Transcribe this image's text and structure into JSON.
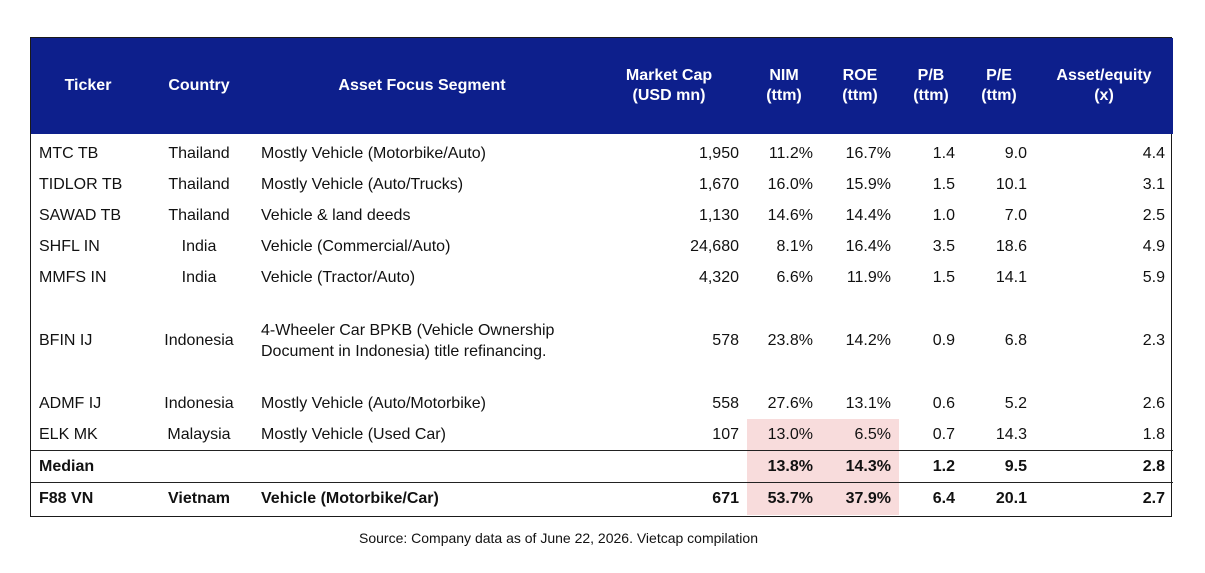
{
  "header": {
    "ticker": "Ticker",
    "country": "Country",
    "segment": "Asset Focus Segment",
    "mcap_l1": "Market Cap",
    "mcap_l2": "(USD mn)",
    "nim_l1": "NIM",
    "nim_l2": "(ttm)",
    "roe_l1": "ROE",
    "roe_l2": "(ttm)",
    "pb_l1": "P/B",
    "pb_l2": "(ttm)",
    "pe_l1": "P/E",
    "pe_l2": "(ttm)",
    "ae_l1": "Asset/equity",
    "ae_l2": "(x)"
  },
  "rows": [
    {
      "ticker": "MTC TB",
      "country": "Thailand",
      "segment": "Mostly Vehicle (Motorbike/Auto)",
      "mcap": "1,950",
      "nim": "11.2%",
      "roe": "16.7%",
      "pb": "1.4",
      "pe": "9.0",
      "ae": "4.4"
    },
    {
      "ticker": "TIDLOR TB",
      "country": "Thailand",
      "segment": "Mostly Vehicle (Auto/Trucks)",
      "mcap": "1,670",
      "nim": "16.0%",
      "roe": "15.9%",
      "pb": "1.5",
      "pe": "10.1",
      "ae": "3.1"
    },
    {
      "ticker": "SAWAD TB",
      "country": "Thailand",
      "segment": "Vehicle & land deeds",
      "mcap": "1,130",
      "nim": "14.6%",
      "roe": "14.4%",
      "pb": "1.0",
      "pe": "7.0",
      "ae": "2.5"
    },
    {
      "ticker": "SHFL IN",
      "country": "India",
      "segment": "Vehicle (Commercial/Auto)",
      "mcap": "24,680",
      "nim": "8.1%",
      "roe": "16.4%",
      "pb": "3.5",
      "pe": "18.6",
      "ae": "4.9"
    },
    {
      "ticker": "MMFS IN",
      "country": "India",
      "segment": "Vehicle (Tractor/Auto)",
      "mcap": "4,320",
      "nim": "6.6%",
      "roe": "11.9%",
      "pb": "1.5",
      "pe": "14.1",
      "ae": "5.9"
    },
    {
      "ticker": "BFIN IJ",
      "country": "Indonesia",
      "segment_l1": "4-Wheeler Car BPKB (Vehicle Ownership",
      "segment_l2": "Document in Indonesia) title refinancing.",
      "mcap": "578",
      "nim": "23.8%",
      "roe": "14.2%",
      "pb": "0.9",
      "pe": "6.8",
      "ae": "2.3"
    },
    {
      "ticker": "ADMF IJ",
      "country": "Indonesia",
      "segment": "Mostly Vehicle (Auto/Motorbike)",
      "mcap": "558",
      "nim": "27.6%",
      "roe": "13.1%",
      "pb": "0.6",
      "pe": "5.2",
      "ae": "2.6"
    },
    {
      "ticker": "ELK MK",
      "country": "Malaysia",
      "segment": "Mostly Vehicle (Used Car)",
      "mcap": "107",
      "nim": "13.0%",
      "roe": "6.5%",
      "pb": "0.7",
      "pe": "14.3",
      "ae": "1.8"
    }
  ],
  "median": {
    "label": "Median",
    "nim": "13.8%",
    "roe": "14.3%",
    "pb": "1.2",
    "pe": "9.5",
    "ae": "2.8"
  },
  "f88": {
    "ticker": "F88 VN",
    "country": "Vietnam",
    "segment": "Vehicle (Motorbike/Car)",
    "mcap": "671",
    "nim": "53.7%",
    "roe": "37.9%",
    "pb": "6.4",
    "pe": "20.1",
    "ae": "2.7"
  },
  "source": "Source: Company data as of June 22, 2026. Vietcap compilation",
  "colors": {
    "header_bg": "#0d1f8c",
    "highlight": "#f8dcdc"
  }
}
